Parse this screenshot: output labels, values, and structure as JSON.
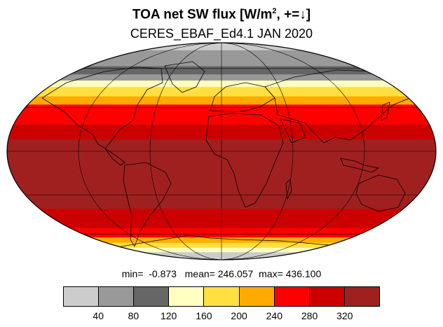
{
  "header": {
    "title_main": "TOA net SW flux [W/m",
    "title_sup": "2",
    "title_tail": ", +=↓]",
    "subtitle": "CERES_EBAF_Ed4.1 JAN 2020"
  },
  "stats": {
    "min_label": "min=",
    "min_value": "-0.873",
    "mean_label": "mean=",
    "mean_value": "246.057",
    "max_label": "max=",
    "max_value": "436.100"
  },
  "colorbar": {
    "colors": [
      "#cccccc",
      "#999999",
      "#666666",
      "#ffffc0",
      "#ffe040",
      "#ffaa00",
      "#ff0000",
      "#cc0000",
      "#a02020"
    ],
    "levels": [
      "40",
      "80",
      "120",
      "160",
      "200",
      "240",
      "280",
      "320"
    ]
  },
  "map": {
    "projection": "Mollweide",
    "ocean_color": "#a02020",
    "coastline_color": "#000000",
    "latitude_bands": [
      {
        "lat_from": 90,
        "lat_to": 78,
        "color": "#cccccc"
      },
      {
        "lat_from": 78,
        "lat_to": 62,
        "color": "#999999"
      },
      {
        "lat_from": 62,
        "lat_to": 55,
        "color": "#666666"
      },
      {
        "lat_from": 55,
        "lat_to": 50,
        "color": "#999999"
      },
      {
        "lat_from": 50,
        "lat_to": 45,
        "color": "#ffffc0"
      },
      {
        "lat_from": 45,
        "lat_to": 38,
        "color": "#ffe040"
      },
      {
        "lat_from": 38,
        "lat_to": 32,
        "color": "#ffaa00"
      },
      {
        "lat_from": 32,
        "lat_to": 18,
        "color": "#ff0000"
      },
      {
        "lat_from": 18,
        "lat_to": 8,
        "color": "#cc0000"
      },
      {
        "lat_from": 8,
        "lat_to": -40,
        "color": "#a02020"
      },
      {
        "lat_from": -40,
        "lat_to": -55,
        "color": "#cc0000"
      },
      {
        "lat_from": -55,
        "lat_to": -63,
        "color": "#ff0000"
      },
      {
        "lat_from": -63,
        "lat_to": -68,
        "color": "#ffaa00"
      },
      {
        "lat_from": -68,
        "lat_to": -73,
        "color": "#ffe040"
      },
      {
        "lat_from": -73,
        "lat_to": -78,
        "color": "#ffffc0"
      },
      {
        "lat_from": -78,
        "lat_to": -90,
        "color": "#cccccc"
      }
    ]
  }
}
